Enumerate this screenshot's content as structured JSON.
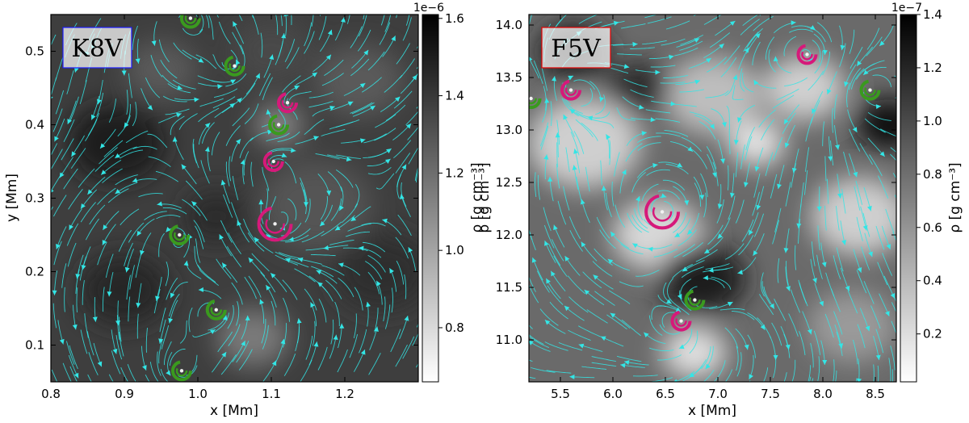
{
  "chart_data": [
    {
      "type": "heatmap",
      "panel_label": "K8V",
      "panel_label_color": "#1a1aff",
      "xlabel": "x [Mm]",
      "ylabel": "y [Mm]",
      "xlim": [
        0.8,
        1.3
      ],
      "ylim": [
        0.05,
        0.55
      ],
      "xticks": [
        0.8,
        0.9,
        1.0,
        1.1,
        1.2
      ],
      "yticks": [
        0.1,
        0.2,
        0.3,
        0.4,
        0.5
      ],
      "xtick_labels": [
        "0.8",
        "0.9",
        "1.0",
        "1.1",
        "1.2"
      ],
      "ytick_labels": [
        "0.1",
        "0.2",
        "0.3",
        "0.4",
        "0.5"
      ],
      "colorbar": {
        "label": "ρ [g cm⁻³]",
        "exponent": "1e−6",
        "range": [
          0.66,
          1.61
        ],
        "ticks": [
          0.8,
          1.0,
          1.2,
          1.4,
          1.6
        ],
        "tick_labels": [
          "0.8",
          "1.0",
          "1.2",
          "1.4",
          "1.6"
        ],
        "colormap": "gray_r"
      },
      "streamline_color": "#33e6e6",
      "vortices": [
        {
          "x": 0.99,
          "y": 0.545,
          "color": "green"
        },
        {
          "x": 1.05,
          "y": 0.48,
          "color": "green"
        },
        {
          "x": 1.122,
          "y": 0.43,
          "color": "magenta"
        },
        {
          "x": 1.11,
          "y": 0.4,
          "color": "green"
        },
        {
          "x": 1.103,
          "y": 0.35,
          "color": "magenta"
        },
        {
          "x": 1.105,
          "y": 0.265,
          "color": "magenta"
        },
        {
          "x": 0.975,
          "y": 0.25,
          "color": "green"
        },
        {
          "x": 1.025,
          "y": 0.148,
          "color": "green"
        },
        {
          "x": 0.978,
          "y": 0.065,
          "color": "green"
        }
      ]
    },
    {
      "type": "heatmap",
      "panel_label": "F5V",
      "panel_label_color": "#e60000",
      "xlabel": "x [Mm]",
      "ylabel": "ρ [g cm⁻³]",
      "xlim": [
        5.2,
        8.7
      ],
      "ylim": [
        10.6,
        14.1
      ],
      "xticks": [
        5.5,
        6.0,
        6.5,
        7.0,
        7.5,
        8.0,
        8.5
      ],
      "yticks": [
        11.0,
        11.5,
        12.0,
        12.5,
        13.0,
        13.5,
        14.0
      ],
      "xtick_labels": [
        "5.5",
        "6.0",
        "6.5",
        "7.0",
        "7.5",
        "8.0",
        "8.5"
      ],
      "ytick_labels": [
        "11.0",
        "11.5",
        "12.0",
        "12.5",
        "13.0",
        "13.5",
        "14.0"
      ],
      "colorbar": {
        "label": "ρ [g cm⁻³]",
        "exponent": "1e−7",
        "range": [
          0.02,
          1.4
        ],
        "ticks": [
          0.2,
          0.4,
          0.6,
          0.8,
          1.0,
          1.2,
          1.4
        ],
        "tick_labels": [
          "0.2",
          "0.4",
          "0.6",
          "0.8",
          "1.0",
          "1.2",
          "1.4"
        ],
        "colormap": "gray_r"
      },
      "streamline_color": "#33e6e6",
      "vortices": [
        {
          "x": 7.85,
          "y": 13.72,
          "color": "magenta"
        },
        {
          "x": 5.6,
          "y": 13.38,
          "color": "magenta"
        },
        {
          "x": 8.45,
          "y": 13.38,
          "color": "green"
        },
        {
          "x": 5.22,
          "y": 13.3,
          "color": "green"
        },
        {
          "x": 6.47,
          "y": 12.22,
          "color": "magenta"
        },
        {
          "x": 6.78,
          "y": 11.38,
          "color": "green"
        },
        {
          "x": 6.65,
          "y": 11.18,
          "color": "magenta"
        }
      ]
    }
  ]
}
